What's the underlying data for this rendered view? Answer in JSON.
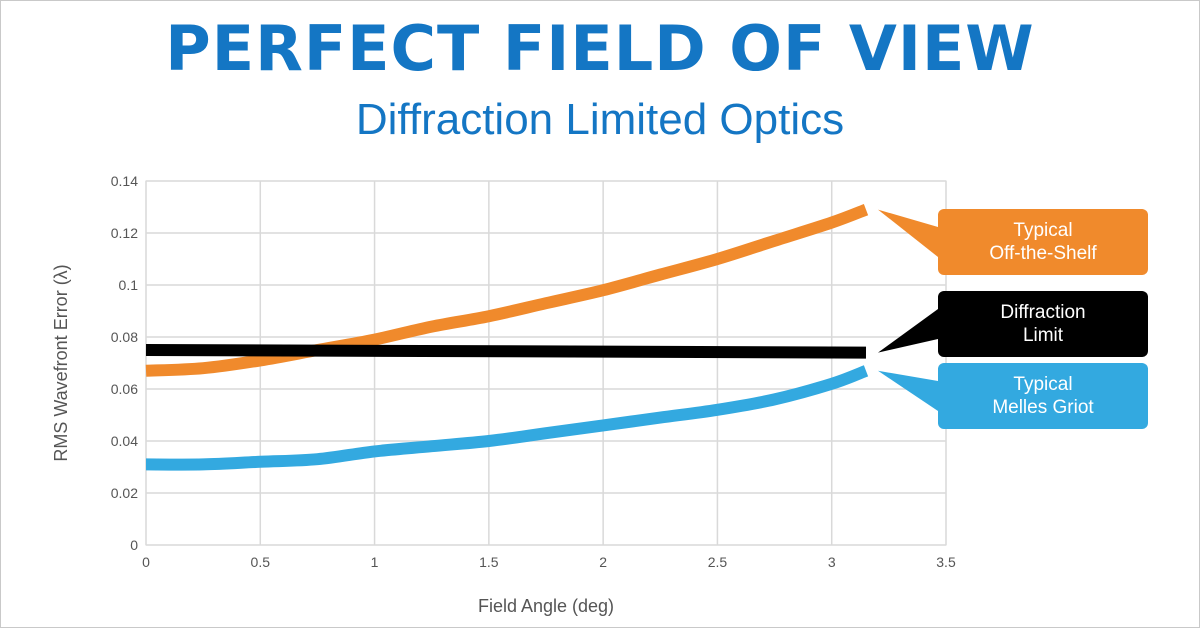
{
  "header": {
    "title": "PERFECT FIELD OF VIEW",
    "subtitle": "Diffraction Limited Optics"
  },
  "colors": {
    "title": "#1476c4",
    "off_the_shelf": "#f08a2c",
    "diffraction": "#000000",
    "melles_griot": "#33a9e0",
    "grid": "#d9d9d9"
  },
  "callouts": [
    {
      "series": "Typical Off-the-Shelf",
      "line1": "Typical",
      "line2": "Off-the-Shelf"
    },
    {
      "series": "Diffraction Limit",
      "line1": "Diffraction",
      "line2": "Limit"
    },
    {
      "series": "Typical Melles Griot",
      "line1": "Typical",
      "line2": "Melles Griot"
    }
  ],
  "chart_data": {
    "type": "line",
    "title": "PERFECT FIELD OF VIEW",
    "subtitle": "Diffraction Limited Optics",
    "xlabel": "Field Angle (deg)",
    "ylabel": "RMS Wavefront Error (λ)",
    "xlim": [
      0,
      3.5
    ],
    "ylim": [
      0,
      0.14
    ],
    "grid": true,
    "x_ticks": [
      "0",
      "0.5",
      "1",
      "1.5",
      "2",
      "2.5",
      "3",
      "3.5"
    ],
    "y_ticks": [
      "0",
      "0.02",
      "0.04",
      "0.06",
      "0.08",
      "0.1",
      "0.12",
      "0.14"
    ],
    "series": [
      {
        "name": "Typical Off-the-Shelf",
        "color": "#f08a2c",
        "x": [
          0,
          0.25,
          0.5,
          0.75,
          1,
          1.25,
          1.5,
          1.75,
          2,
          2.25,
          2.5,
          2.75,
          3,
          3.15
        ],
        "y": [
          0.067,
          0.068,
          0.071,
          0.075,
          0.079,
          0.084,
          0.088,
          0.093,
          0.098,
          0.104,
          0.11,
          0.117,
          0.124,
          0.129
        ]
      },
      {
        "name": "Diffraction Limit",
        "color": "#000000",
        "x": [
          0,
          3.15
        ],
        "y": [
          0.075,
          0.074
        ]
      },
      {
        "name": "Typical Melles Griot",
        "color": "#33a9e0",
        "x": [
          0,
          0.25,
          0.5,
          0.75,
          1,
          1.25,
          1.5,
          1.75,
          2,
          2.25,
          2.5,
          2.75,
          3,
          3.15
        ],
        "y": [
          0.031,
          0.031,
          0.032,
          0.033,
          0.036,
          0.038,
          0.04,
          0.043,
          0.046,
          0.049,
          0.052,
          0.056,
          0.062,
          0.067
        ]
      }
    ]
  }
}
